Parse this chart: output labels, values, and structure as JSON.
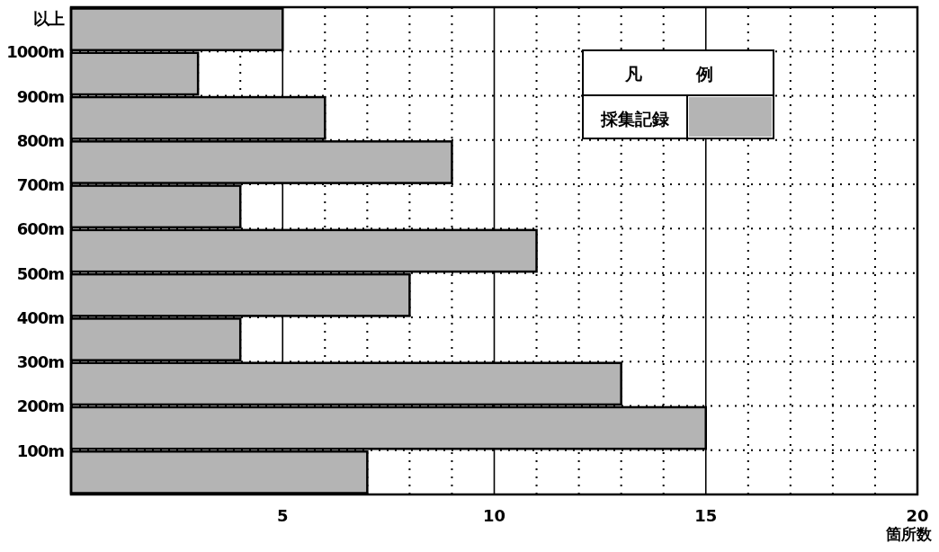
{
  "chart_data": {
    "type": "histogram",
    "orientation": "horizontal",
    "bins": [
      0,
      100,
      200,
      300,
      400,
      500,
      600,
      700,
      800,
      900,
      1000,
      1100
    ],
    "series": [
      {
        "name": "採集記録",
        "color": "#b4b4b4",
        "values": [
          7,
          15,
          13,
          4,
          8,
          11,
          4,
          9,
          6,
          3,
          5
        ]
      }
    ],
    "xlim": [
      0,
      20
    ],
    "xticks": [
      5,
      10,
      15,
      20
    ],
    "ylim": [
      0,
      1100
    ],
    "yticks": [
      {
        "value": 100,
        "label": "100m"
      },
      {
        "value": 200,
        "label": "200m"
      },
      {
        "value": 300,
        "label": "300m"
      },
      {
        "value": 400,
        "label": "400m"
      },
      {
        "value": 500,
        "label": "500m"
      },
      {
        "value": 600,
        "label": "600m"
      },
      {
        "value": 700,
        "label": "700m"
      },
      {
        "value": 800,
        "label": "800m"
      },
      {
        "value": 900,
        "label": "900m"
      },
      {
        "value": 1000,
        "label": "1000m"
      },
      {
        "value": 1075,
        "label": "以上"
      }
    ],
    "xlabel": "箇所数",
    "legend_title": "凡例",
    "legend": "top right",
    "grid": true
  }
}
